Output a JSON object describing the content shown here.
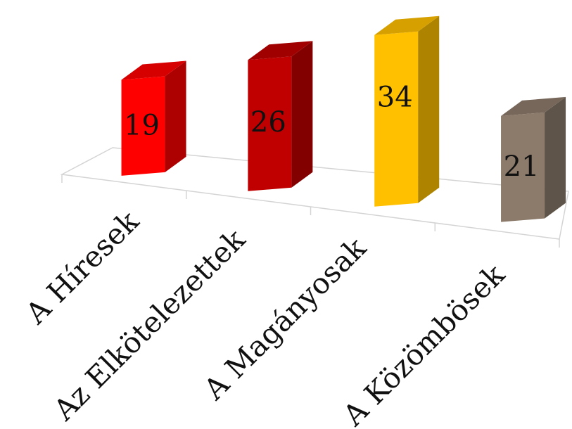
{
  "chart_data": {
    "type": "bar",
    "categories": [
      "A Híresek",
      "Az Elkötelezettek",
      "A Magányosak",
      "A Közömbösek"
    ],
    "values": [
      19,
      26,
      34,
      21
    ],
    "colors": [
      "#ff0000",
      "#c00000",
      "#ffc000",
      "#8c7b6b"
    ],
    "data_labels": [
      "19",
      "26",
      "34",
      "21"
    ],
    "title": "",
    "xlabel": "",
    "ylabel": "",
    "ylim": [
      0,
      34
    ],
    "grid": false,
    "legend": "none",
    "style": "3d"
  }
}
